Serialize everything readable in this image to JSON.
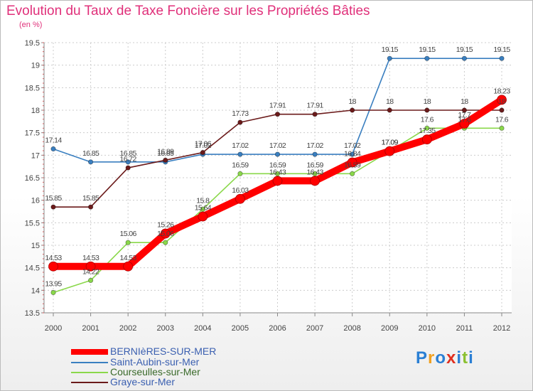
{
  "chart_data": {
    "type": "line",
    "title": "Evolution du Taux de Taxe Foncière sur les Propriétés Bâties",
    "unit_label": "(en %)",
    "x": [
      "2000",
      "2001",
      "2002",
      "2003",
      "2004",
      "2005",
      "2006",
      "2007",
      "2008",
      "2009",
      "2010",
      "2011",
      "2012"
    ],
    "ylim": [
      13.5,
      19.5
    ],
    "yticks": [
      "13.5",
      "14",
      "14.5",
      "15",
      "15.5",
      "16",
      "16.5",
      "17",
      "17.5",
      "18",
      "18.5",
      "19",
      "19.5"
    ],
    "series": [
      {
        "name": "BERNIèRES-SUR-MER",
        "color": "#ff0000",
        "values": [
          14.53,
          14.53,
          14.53,
          15.26,
          15.64,
          16.03,
          16.43,
          16.43,
          16.84,
          17.09,
          17.35,
          17.7,
          18.23
        ]
      },
      {
        "name": "Saint-Aubin-sur-Mer",
        "color": "#3a7fc0",
        "values": [
          17.14,
          16.85,
          16.85,
          16.85,
          17.02,
          17.02,
          17.02,
          17.02,
          17.02,
          19.15,
          19.15,
          19.15,
          19.15
        ]
      },
      {
        "name": "Courseulles-sur-Mer",
        "color": "#8ad84a",
        "values": [
          13.95,
          14.22,
          15.06,
          15.06,
          15.8,
          16.59,
          16.59,
          16.59,
          16.59,
          17.09,
          17.6,
          17.6,
          17.6
        ]
      },
      {
        "name": "Graye-sur-Mer",
        "color": "#6b1a1a",
        "values": [
          15.85,
          15.85,
          16.72,
          16.89,
          17.06,
          17.73,
          17.91,
          17.91,
          18,
          18,
          18,
          18,
          18
        ]
      }
    ],
    "data_labels": [
      [
        "14.53",
        "14.53",
        "14.53",
        "15.26",
        "15.64",
        "16.03",
        "16.43",
        "16.43",
        "16.84",
        "17.09",
        "17.35",
        "17.7",
        "18.23"
      ],
      [
        "17.14",
        "16.85",
        "16.85",
        "16.85",
        "17.02",
        "17.02",
        "17.02",
        "17.02",
        "17.02",
        "19.15",
        "19.15",
        "19.15",
        "19.15"
      ],
      [
        "13.95",
        "14.22",
        "15.06",
        "15.06",
        "15.8",
        "16.59",
        "16.59",
        "16.59",
        "16.59",
        "17.09",
        "17.6",
        "17.6",
        "17.6"
      ],
      [
        "15.85",
        "15.85",
        "16.72",
        "16.89",
        "17.06",
        "17.73",
        "17.91",
        "17.91",
        "18",
        "18",
        "18",
        "18",
        "18"
      ]
    ],
    "legend_position": "bottom-left"
  },
  "logo": {
    "text": "Proxiti",
    "colors": [
      "#2a7fd4",
      "#f0a020",
      "#2a7fd4",
      "#e03020",
      "#2a7fd4",
      "#8ac030",
      "#2a7fd4"
    ]
  }
}
